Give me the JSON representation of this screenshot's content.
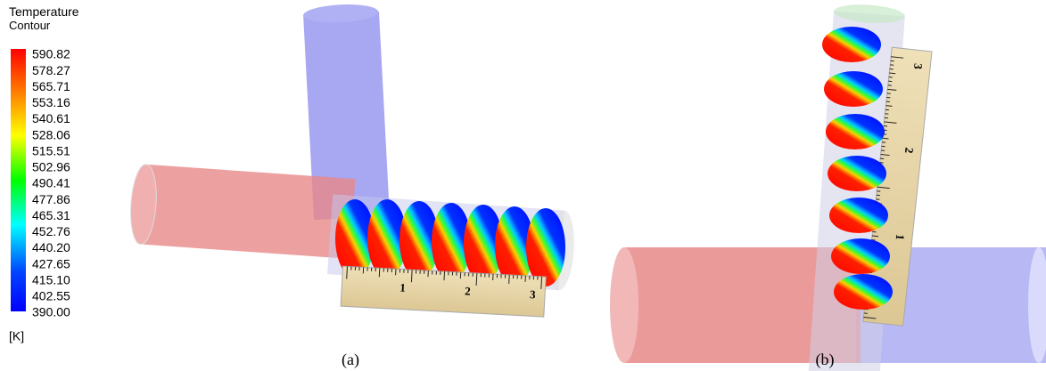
{
  "legend": {
    "title": "Temperature",
    "subtitle": "Contour",
    "labels": [
      "590.82",
      "578.27",
      "565.71",
      "553.16",
      "540.61",
      "528.06",
      "515.51",
      "502.96",
      "490.41",
      "477.86",
      "465.31",
      "452.76",
      "440.20",
      "427.65",
      "415.10",
      "402.55",
      "390.00"
    ],
    "unit": "[K]"
  },
  "panels": [
    {
      "caption": "(a)",
      "ruler_labels": [
        "1",
        "2",
        "3"
      ]
    },
    {
      "caption": "(b)",
      "ruler_labels": [
        "1",
        "2",
        "3"
      ]
    }
  ]
}
